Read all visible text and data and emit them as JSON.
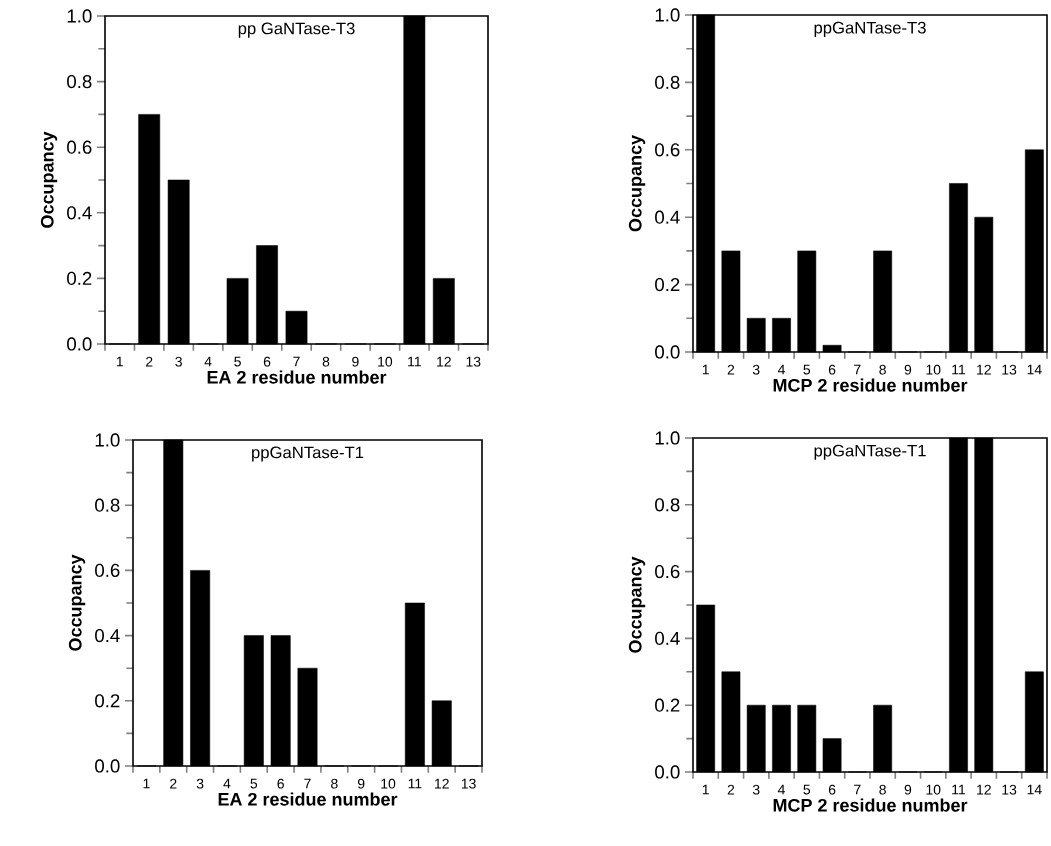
{
  "chart_data": [
    {
      "type": "bar",
      "title": "pp GaNTase-T3",
      "xlabel": "EA 2 residue number",
      "ylabel": "Occupancy",
      "categories": [
        "1",
        "2",
        "3",
        "4",
        "5",
        "6",
        "7",
        "8",
        "9",
        "10",
        "11",
        "12",
        "13"
      ],
      "values": [
        0,
        0.7,
        0.5,
        0,
        0.2,
        0.3,
        0.1,
        0,
        0,
        0,
        1.0,
        0.2,
        0
      ],
      "color": "#000000",
      "ylim": [
        0,
        1
      ],
      "yticks": [
        {
          "value": 0,
          "label": "0.0"
        },
        {
          "value": 0.2,
          "label": "0.2"
        },
        {
          "value": 0.4,
          "label": "0.4"
        },
        {
          "value": 0.6,
          "label": "0.6"
        },
        {
          "value": 0.8,
          "label": "0.8"
        },
        {
          "value": 1,
          "label": "1.0"
        }
      ]
    },
    {
      "type": "bar",
      "title": "ppGaNTase-T3",
      "xlabel": "MCP 2 residue number",
      "ylabel": "Occupancy",
      "categories": [
        "1",
        "2",
        "3",
        "4",
        "5",
        "6",
        "7",
        "8",
        "9",
        "10",
        "11",
        "12",
        "13",
        "14"
      ],
      "values": [
        1.0,
        0.3,
        0.1,
        0.1,
        0.3,
        0.02,
        0,
        0.3,
        0,
        0,
        0.5,
        0.4,
        0,
        0.6
      ],
      "color": "#000000",
      "ylim": [
        0,
        1
      ],
      "yticks": [
        {
          "value": 0,
          "label": "0.0"
        },
        {
          "value": 0.2,
          "label": "0.2"
        },
        {
          "value": 0.4,
          "label": "0.4"
        },
        {
          "value": 0.6,
          "label": "0.6"
        },
        {
          "value": 0.8,
          "label": "0.8"
        },
        {
          "value": 1,
          "label": "1.0"
        }
      ]
    },
    {
      "type": "bar",
      "title": "ppGaNTase-T1",
      "xlabel": "EA 2 residue number",
      "ylabel": "Occupancy",
      "categories": [
        "1",
        "2",
        "3",
        "4",
        "5",
        "6",
        "7",
        "8",
        "9",
        "10",
        "11",
        "12",
        "13"
      ],
      "values": [
        0,
        1.0,
        0.6,
        0,
        0.4,
        0.4,
        0.3,
        0,
        0,
        0,
        0.5,
        0.2,
        0
      ],
      "color": "#000000",
      "ylim": [
        0,
        1
      ],
      "yticks": [
        {
          "value": 0,
          "label": "0.0"
        },
        {
          "value": 0.2,
          "label": "0.2"
        },
        {
          "value": 0.4,
          "label": "0.4"
        },
        {
          "value": 0.6,
          "label": "0.6"
        },
        {
          "value": 0.8,
          "label": "0.8"
        },
        {
          "value": 1,
          "label": "1.0"
        }
      ]
    },
    {
      "type": "bar",
      "title": "ppGaNTase-T1",
      "xlabel": "MCP 2 residue number",
      "ylabel": "Occupancy",
      "categories": [
        "1",
        "2",
        "3",
        "4",
        "5",
        "6",
        "7",
        "8",
        "9",
        "10",
        "11",
        "12",
        "13",
        "14"
      ],
      "values": [
        0.5,
        0.3,
        0.2,
        0.2,
        0.2,
        0.1,
        0,
        0.2,
        0,
        0,
        1.0,
        1.0,
        0,
        0.3
      ],
      "color": "#000000",
      "ylim": [
        0,
        1
      ],
      "yticks": [
        {
          "value": 0,
          "label": "0.0"
        },
        {
          "value": 0.2,
          "label": "0.2"
        },
        {
          "value": 0.4,
          "label": "0.4"
        },
        {
          "value": 0.6,
          "label": "0.6"
        },
        {
          "value": 0.8,
          "label": "0.8"
        },
        {
          "value": 1,
          "label": "1.0"
        }
      ]
    }
  ]
}
